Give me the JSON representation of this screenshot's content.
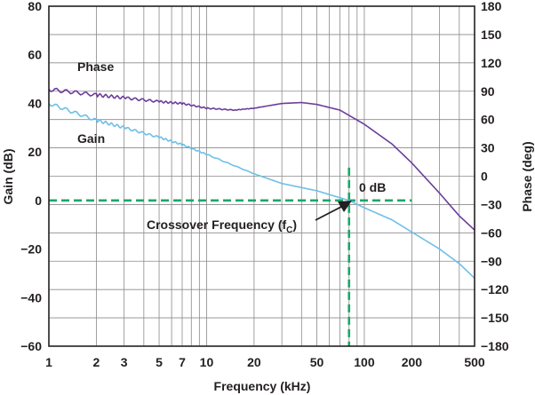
{
  "chart_data": {
    "type": "line",
    "xlabel": "Frequency (kHz)",
    "ylabel": "Gain (dB)",
    "y2label": "Phase (deg)",
    "x_scale": "log",
    "xlim": [
      1,
      500
    ],
    "ylim": [
      -60,
      80
    ],
    "y2lim": [
      -180,
      180
    ],
    "grid": true,
    "x_ticks": [
      {
        "value": 1,
        "label": "1"
      },
      {
        "value": 2,
        "label": "2"
      },
      {
        "value": 3,
        "label": "3"
      },
      {
        "value": 5,
        "label": "5"
      },
      {
        "value": 7,
        "label": "7"
      },
      {
        "value": 10,
        "label": "10"
      },
      {
        "value": 20,
        "label": "20"
      },
      {
        "value": 50,
        "label": "50"
      },
      {
        "value": 100,
        "label": "100"
      },
      {
        "value": 200,
        "label": "200"
      },
      {
        "value": 500,
        "label": "500"
      }
    ],
    "y_ticks": [
      {
        "value": 80,
        "label": "80"
      },
      {
        "value": 60,
        "label": "60"
      },
      {
        "value": 40,
        "label": "40"
      },
      {
        "value": 20,
        "label": "20"
      },
      {
        "value": 0,
        "label": "0"
      },
      {
        "value": -20,
        "label": "−20"
      },
      {
        "value": -40,
        "label": "−40"
      },
      {
        "value": -60,
        "label": "−60"
      }
    ],
    "y2_ticks": [
      {
        "value": 180,
        "label": "180"
      },
      {
        "value": 150,
        "label": "150"
      },
      {
        "value": 120,
        "label": "120"
      },
      {
        "value": 90,
        "label": "90"
      },
      {
        "value": 60,
        "label": "60"
      },
      {
        "value": 30,
        "label": "30"
      },
      {
        "value": 0,
        "label": "0"
      },
      {
        "value": -30,
        "label": "−30"
      },
      {
        "value": -60,
        "label": "−60"
      },
      {
        "value": -90,
        "label": "−90"
      },
      {
        "value": -120,
        "label": "−120"
      },
      {
        "value": -150,
        "label": "−150"
      },
      {
        "value": -180,
        "label": "−180"
      }
    ],
    "series": [
      {
        "name": "Gain",
        "axis": "left",
        "color": "#6ebfe8",
        "points": [
          [
            1,
            40
          ],
          [
            2,
            33
          ],
          [
            3,
            30
          ],
          [
            5,
            26
          ],
          [
            7,
            23
          ],
          [
            10,
            19
          ],
          [
            20,
            11
          ],
          [
            30,
            7
          ],
          [
            50,
            4
          ],
          [
            80,
            0
          ],
          [
            100,
            -3
          ],
          [
            150,
            -8
          ],
          [
            200,
            -13
          ],
          [
            300,
            -20
          ],
          [
            400,
            -26
          ],
          [
            500,
            -32
          ]
        ]
      },
      {
        "name": "Phase",
        "axis": "right",
        "color": "#6c3d9a",
        "points": [
          [
            1,
            92
          ],
          [
            2,
            86
          ],
          [
            3,
            83
          ],
          [
            5,
            79
          ],
          [
            7,
            77
          ],
          [
            10,
            72
          ],
          [
            15,
            70
          ],
          [
            20,
            72
          ],
          [
            30,
            77
          ],
          [
            40,
            78
          ],
          [
            50,
            76
          ],
          [
            70,
            70
          ],
          [
            100,
            55
          ],
          [
            150,
            34
          ],
          [
            200,
            14
          ],
          [
            300,
            -18
          ],
          [
            400,
            -42
          ],
          [
            500,
            -57
          ]
        ]
      }
    ],
    "reference_lines": [
      {
        "orientation": "horizontal",
        "axis": "left",
        "value": 0,
        "color": "#1aa86a"
      },
      {
        "orientation": "vertical",
        "value": 80,
        "color": "#1aa86a"
      }
    ],
    "annotations": {
      "phase_label": "Phase",
      "gain_label": "Gain",
      "zero_db_label": "0 dB",
      "crossover_label": "Crossover Frequency (f",
      "crossover_subscript": "C",
      "crossover_close": ")"
    }
  }
}
